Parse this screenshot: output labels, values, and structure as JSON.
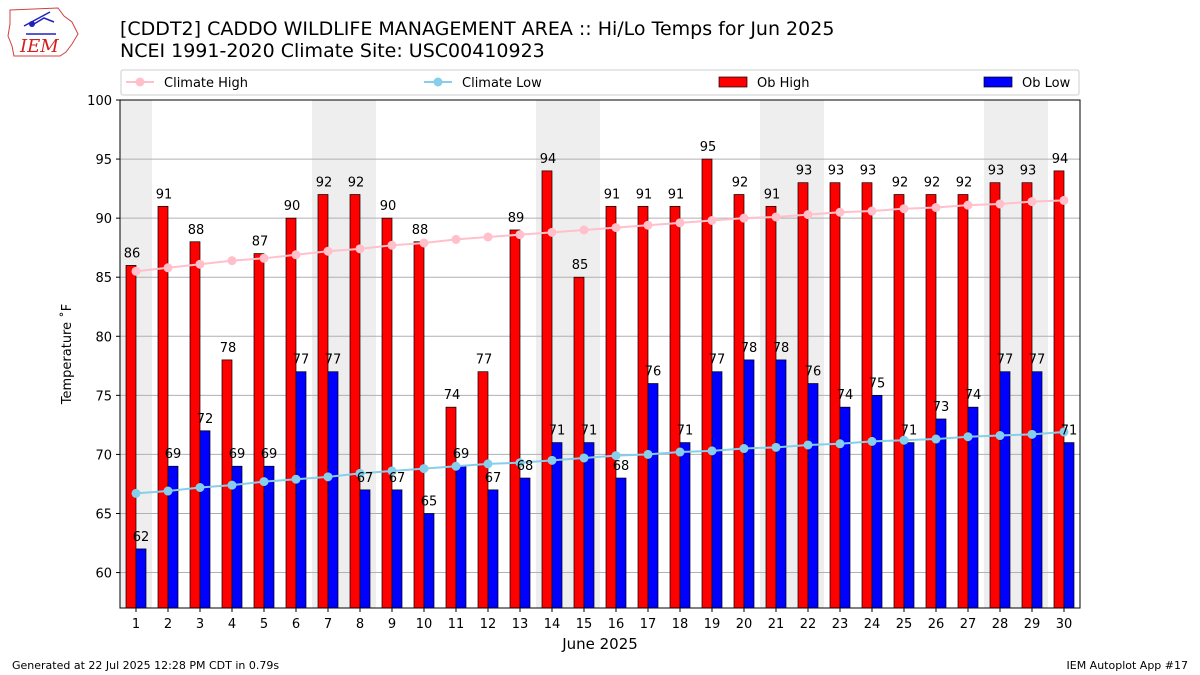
{
  "header": {
    "title": "[CDDT2] CADDO WILDLIFE MANAGEMENT AREA :: Hi/Lo Temps for Jun 2025",
    "subtitle": "NCEI 1991-2020 Climate Site: USC00410923",
    "logo_text": "IEM"
  },
  "footer": {
    "generated": "Generated at 22 Jul 2025 12:28 PM CDT in 0.79s",
    "app": "IEM Autoplot App #17"
  },
  "chart_data": {
    "type": "bar",
    "title": "[CDDT2] CADDO WILDLIFE MANAGEMENT AREA :: Hi/Lo Temps for Jun 2025",
    "xlabel": "June 2025",
    "ylabel": "Temperature ˚F",
    "ylim": [
      57,
      100
    ],
    "yticks": [
      60,
      65,
      70,
      75,
      80,
      85,
      90,
      95,
      100
    ],
    "grid": true,
    "legend_position": "top",
    "categories": [
      "1",
      "2",
      "3",
      "4",
      "5",
      "6",
      "7",
      "8",
      "9",
      "10",
      "11",
      "12",
      "13",
      "14",
      "15",
      "16",
      "17",
      "18",
      "19",
      "20",
      "21",
      "22",
      "23",
      "24",
      "25",
      "26",
      "27",
      "28",
      "29",
      "30"
    ],
    "weekend_shading": [
      [
        1,
        1
      ],
      [
        7,
        8
      ],
      [
        14,
        15
      ],
      [
        21,
        22
      ],
      [
        28,
        29
      ]
    ],
    "series": [
      {
        "name": "Ob High",
        "kind": "bar",
        "color": "#ff0000",
        "values": [
          86,
          91,
          88,
          78,
          87,
          90,
          92,
          92,
          90,
          88,
          74,
          77,
          89,
          94,
          85,
          91,
          91,
          91,
          95,
          92,
          91,
          93,
          93,
          93,
          92,
          92,
          92,
          93,
          93,
          94
        ]
      },
      {
        "name": "Ob Low",
        "kind": "bar",
        "color": "#0000ff",
        "values": [
          62,
          69,
          72,
          69,
          69,
          77,
          77,
          67,
          67,
          65,
          69,
          67,
          68,
          71,
          71,
          68,
          76,
          71,
          77,
          78,
          78,
          76,
          74,
          75,
          71,
          73,
          74,
          77,
          77,
          71
        ]
      },
      {
        "name": "Climate High",
        "kind": "line",
        "color": "#ffc0cb",
        "values": [
          85.5,
          85.8,
          86.1,
          86.4,
          86.6,
          86.9,
          87.2,
          87.4,
          87.7,
          87.9,
          88.2,
          88.4,
          88.6,
          88.8,
          89.0,
          89.2,
          89.4,
          89.6,
          89.8,
          90.0,
          90.1,
          90.3,
          90.5,
          90.6,
          90.8,
          90.9,
          91.1,
          91.2,
          91.4,
          91.5
        ]
      },
      {
        "name": "Climate Low",
        "kind": "line",
        "color": "#87ceeb",
        "values": [
          66.7,
          66.9,
          67.2,
          67.4,
          67.7,
          67.9,
          68.1,
          68.4,
          68.6,
          68.8,
          69.0,
          69.2,
          69.3,
          69.5,
          69.7,
          69.9,
          70.0,
          70.2,
          70.3,
          70.5,
          70.6,
          70.8,
          70.9,
          71.1,
          71.2,
          71.3,
          71.5,
          71.6,
          71.7,
          71.9
        ]
      }
    ]
  }
}
